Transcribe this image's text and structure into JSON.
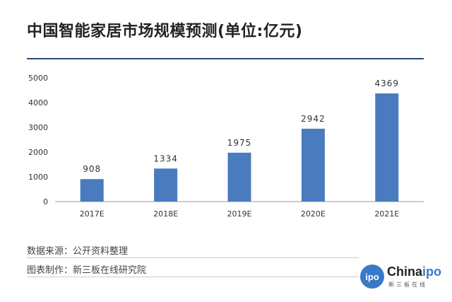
{
  "header": {
    "title": "中国智能家居市场规模预测(单位:亿元)"
  },
  "chart_data": {
    "type": "bar",
    "title": "中国智能家居市场规模预测(单位:亿元)",
    "categories": [
      "2017E",
      "2018E",
      "2019E",
      "2020E",
      "2021E"
    ],
    "values": [
      908,
      1334,
      1975,
      2942,
      4369
    ],
    "data_labels": [
      "908",
      "1334",
      "1975",
      "2942",
      "4369"
    ],
    "yticks": [
      "0",
      "1000",
      "2000",
      "3000",
      "4000",
      "5000"
    ],
    "ylim": [
      0,
      5000
    ],
    "xlabel": "",
    "ylabel": "",
    "grid": false,
    "bar_color": "#4a7bbf"
  },
  "footer": {
    "source": "数据来源：公开资料整理",
    "maker": "图表制作：新三板在线研究院"
  },
  "logo": {
    "badge": "ipo",
    "word_main": "China",
    "word_accent": "ipo",
    "sub": "新三板在线"
  },
  "colors": {
    "title_rule": "#2b4a77",
    "bar": "#4a7bbf",
    "logo_accent": "#3a78c9"
  }
}
